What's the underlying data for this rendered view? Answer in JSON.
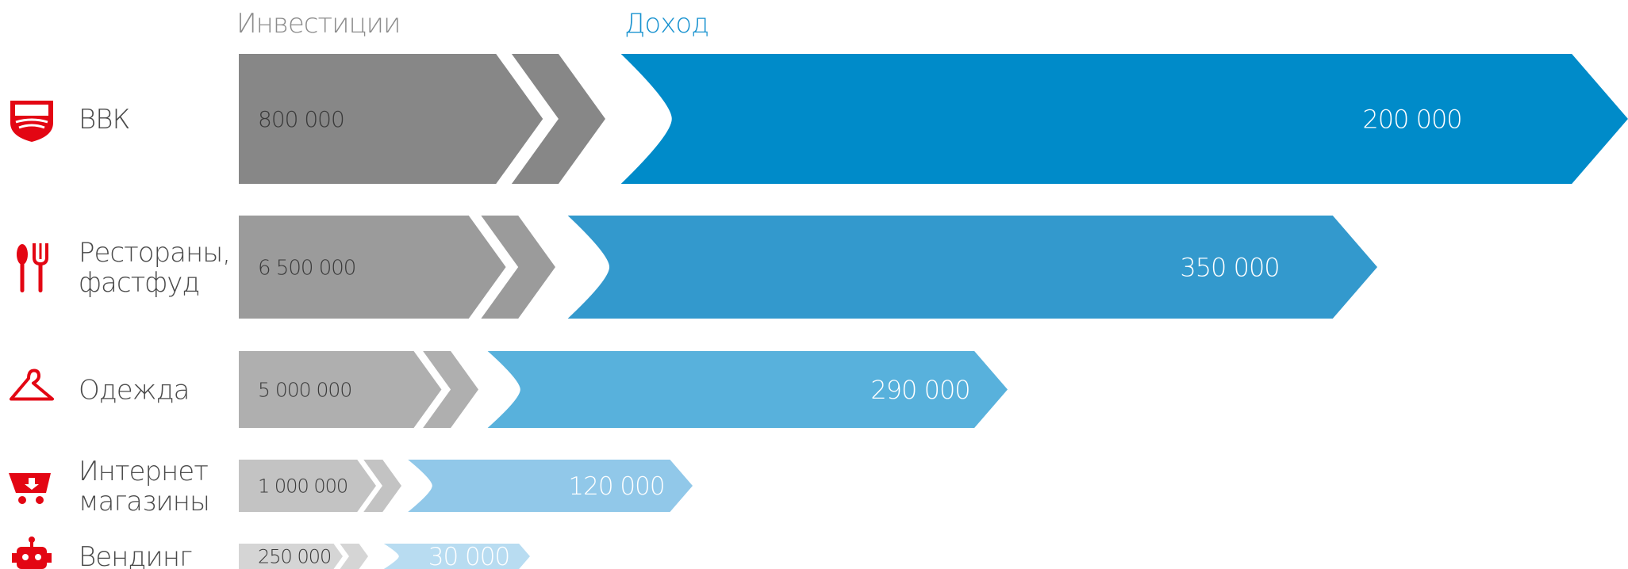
{
  "chart_data": {
    "type": "bar",
    "headers": {
      "investment": "Инвестиции",
      "income": "Доход"
    },
    "categories": [
      "ВВК",
      "Рестораны, фастфуд",
      "Одежда",
      "Интернет магазины",
      "Вендинг"
    ],
    "category_lines": [
      [
        "ВВК"
      ],
      [
        "Рестораны,",
        "фастфуд"
      ],
      [
        "Одежда"
      ],
      [
        "Интернет",
        "магазины"
      ],
      [
        "Вендинг"
      ]
    ],
    "icons": [
      "shield-icon",
      "cutlery-icon",
      "hanger-icon",
      "shopping-cart-icon",
      "robot-icon"
    ],
    "series": [
      {
        "name": "Инвестиции",
        "values": [
          800000,
          6500000,
          5000000,
          1000000,
          250000
        ],
        "labels": [
          "800 000",
          "6 500 000",
          "5 000 000",
          "1 000 000",
          "250 000"
        ]
      },
      {
        "name": "Доход",
        "values": [
          200000,
          350000,
          290000,
          120000,
          30000
        ],
        "labels": [
          "200 000",
          "350 000",
          "290 000",
          "120 000",
          "30 000"
        ]
      }
    ],
    "colors": {
      "investment": [
        "#878787",
        "#9b9b9b",
        "#afafaf",
        "#c3c3c3",
        "#d5d5d5"
      ],
      "income": [
        "#008bc9",
        "#3399cd",
        "#58b1dc",
        "#91c8e9",
        "#b8dcf1"
      ],
      "icon": "#e30613",
      "income_header": "#1a93d0",
      "investment_header": "#8c8c8c",
      "row_label": "#4a4a4a"
    }
  }
}
